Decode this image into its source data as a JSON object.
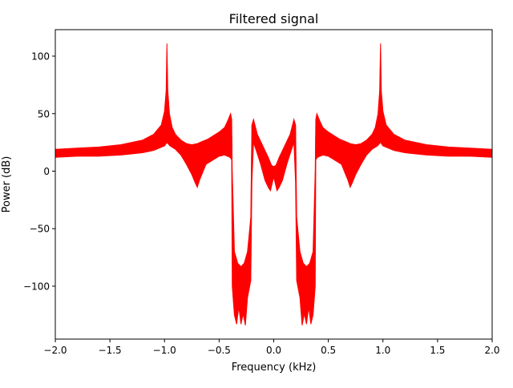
{
  "chart_data": {
    "type": "line",
    "title": "Filtered signal",
    "xlabel": "Frequency (kHz)",
    "ylabel": "Power (dB)",
    "xlim": [
      -2.0,
      2.0
    ],
    "ylim": [
      -146,
      123
    ],
    "xticks": [
      -2.0,
      -1.5,
      -1.0,
      -0.5,
      0.0,
      0.5,
      1.0,
      1.5,
      2.0
    ],
    "xtick_labels": [
      "−2.0",
      "−1.5",
      "−1.0",
      "−0.5",
      "0.0",
      "0.5",
      "1.0",
      "1.5",
      "2.0"
    ],
    "yticks": [
      -100,
      -50,
      0,
      50,
      100
    ],
    "ytick_labels": [
      "−100",
      "−50",
      "0",
      "50",
      "100"
    ],
    "grid": false,
    "series": [
      {
        "color": "#ff0000",
        "upper_envelope": [
          [
            -2.0,
            19
          ],
          [
            -1.8,
            20
          ],
          [
            -1.6,
            21
          ],
          [
            -1.4,
            23
          ],
          [
            -1.2,
            27
          ],
          [
            -1.1,
            32
          ],
          [
            -1.03,
            40
          ],
          [
            -1.0,
            52
          ],
          [
            -0.985,
            70
          ],
          [
            -0.978,
            111
          ],
          [
            -0.97,
            70
          ],
          [
            -0.955,
            50
          ],
          [
            -0.93,
            38
          ],
          [
            -0.9,
            32
          ],
          [
            -0.85,
            27
          ],
          [
            -0.8,
            24
          ],
          [
            -0.75,
            23
          ],
          [
            -0.7,
            24
          ],
          [
            -0.6,
            28
          ],
          [
            -0.5,
            34
          ],
          [
            -0.45,
            38
          ],
          [
            -0.42,
            44
          ],
          [
            -0.395,
            50
          ],
          [
            -0.385,
            45
          ],
          [
            -0.38,
            0
          ],
          [
            -0.36,
            -70
          ],
          [
            -0.33,
            -80
          ],
          [
            -0.3,
            -83
          ],
          [
            -0.27,
            -80
          ],
          [
            -0.24,
            -70
          ],
          [
            -0.21,
            -40
          ],
          [
            -0.2,
            40
          ],
          [
            -0.185,
            45
          ],
          [
            -0.15,
            32
          ],
          [
            -0.1,
            22
          ],
          [
            -0.05,
            12
          ],
          [
            -0.02,
            5
          ],
          [
            0.0,
            4
          ],
          [
            0.02,
            5
          ],
          [
            0.05,
            12
          ],
          [
            0.1,
            22
          ],
          [
            0.15,
            32
          ],
          [
            0.185,
            45
          ],
          [
            0.2,
            40
          ],
          [
            0.21,
            -40
          ],
          [
            0.24,
            -70
          ],
          [
            0.27,
            -80
          ],
          [
            0.3,
            -83
          ],
          [
            0.33,
            -80
          ],
          [
            0.36,
            -70
          ],
          [
            0.38,
            0
          ],
          [
            0.385,
            45
          ],
          [
            0.395,
            50
          ],
          [
            0.42,
            44
          ],
          [
            0.45,
            38
          ],
          [
            0.5,
            34
          ],
          [
            0.6,
            28
          ],
          [
            0.7,
            24
          ],
          [
            0.75,
            23
          ],
          [
            0.8,
            24
          ],
          [
            0.85,
            27
          ],
          [
            0.9,
            32
          ],
          [
            0.93,
            38
          ],
          [
            0.955,
            50
          ],
          [
            0.97,
            70
          ],
          [
            0.978,
            111
          ],
          [
            0.985,
            70
          ],
          [
            1.0,
            52
          ],
          [
            1.03,
            40
          ],
          [
            1.1,
            32
          ],
          [
            1.2,
            27
          ],
          [
            1.4,
            23
          ],
          [
            1.6,
            21
          ],
          [
            1.8,
            20
          ],
          [
            2.0,
            19
          ]
        ],
        "lower_envelope": [
          [
            -2.0,
            12
          ],
          [
            -1.8,
            13
          ],
          [
            -1.6,
            13
          ],
          [
            -1.4,
            14
          ],
          [
            -1.2,
            16
          ],
          [
            -1.1,
            18
          ],
          [
            -1.0,
            22
          ],
          [
            -0.978,
            25
          ],
          [
            -0.95,
            22
          ],
          [
            -0.9,
            19
          ],
          [
            -0.85,
            14
          ],
          [
            -0.8,
            6
          ],
          [
            -0.75,
            -3
          ],
          [
            -0.72,
            -10
          ],
          [
            -0.7,
            -14
          ],
          [
            -0.68,
            -8
          ],
          [
            -0.62,
            6
          ],
          [
            -0.5,
            13
          ],
          [
            -0.45,
            14
          ],
          [
            -0.4,
            12
          ],
          [
            -0.385,
            10
          ],
          [
            -0.38,
            -100
          ],
          [
            -0.36,
            -125
          ],
          [
            -0.34,
            -133
          ],
          [
            -0.32,
            -118
          ],
          [
            -0.3,
            -133
          ],
          [
            -0.28,
            -124
          ],
          [
            -0.26,
            -134
          ],
          [
            -0.24,
            -110
          ],
          [
            -0.22,
            -100
          ],
          [
            -0.21,
            -95
          ],
          [
            -0.2,
            -10
          ],
          [
            -0.185,
            25
          ],
          [
            -0.15,
            15
          ],
          [
            -0.12,
            6
          ],
          [
            -0.08,
            -8
          ],
          [
            -0.05,
            -14
          ],
          [
            -0.03,
            -17
          ],
          [
            0.0,
            -5
          ],
          [
            0.03,
            -17
          ],
          [
            0.05,
            -14
          ],
          [
            0.08,
            -8
          ],
          [
            0.12,
            6
          ],
          [
            0.15,
            15
          ],
          [
            0.185,
            25
          ],
          [
            0.2,
            -10
          ],
          [
            0.21,
            -95
          ],
          [
            0.22,
            -100
          ],
          [
            0.24,
            -110
          ],
          [
            0.26,
            -134
          ],
          [
            0.28,
            -124
          ],
          [
            0.3,
            -133
          ],
          [
            0.32,
            -118
          ],
          [
            0.34,
            -133
          ],
          [
            0.36,
            -125
          ],
          [
            0.38,
            -100
          ],
          [
            0.385,
            10
          ],
          [
            0.4,
            12
          ],
          [
            0.45,
            14
          ],
          [
            0.5,
            13
          ],
          [
            0.62,
            6
          ],
          [
            0.68,
            -8
          ],
          [
            0.7,
            -14
          ],
          [
            0.72,
            -10
          ],
          [
            0.75,
            -3
          ],
          [
            0.8,
            6
          ],
          [
            0.85,
            14
          ],
          [
            0.9,
            19
          ],
          [
            0.95,
            22
          ],
          [
            0.978,
            25
          ],
          [
            1.0,
            22
          ],
          [
            1.1,
            18
          ],
          [
            1.2,
            16
          ],
          [
            1.4,
            14
          ],
          [
            1.6,
            13
          ],
          [
            1.8,
            13
          ],
          [
            2.0,
            12
          ]
        ]
      }
    ]
  }
}
